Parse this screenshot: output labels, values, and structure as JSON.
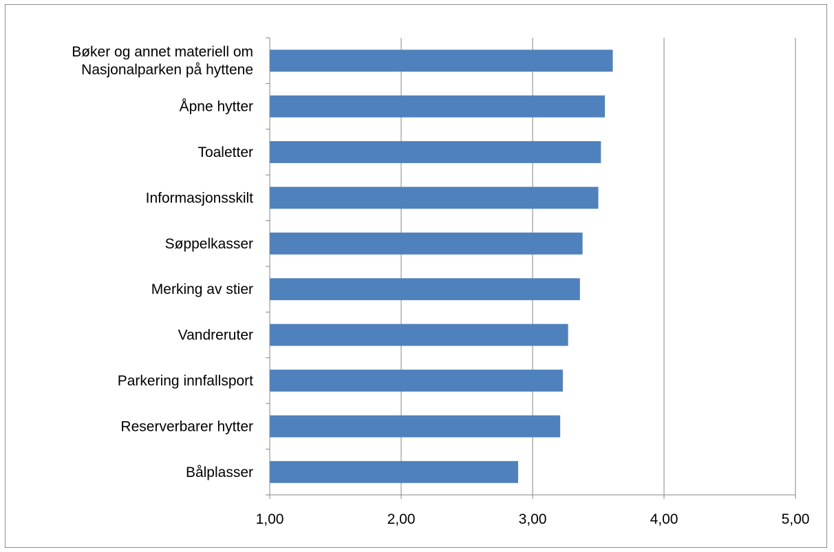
{
  "chart_data": {
    "type": "bar",
    "orientation": "horizontal",
    "title": "",
    "xlabel": "",
    "ylabel": "",
    "categories": [
      [
        "Bøker og annet materiell om",
        "Nasjonalparken på  hyttene"
      ],
      [
        "Åpne hytter"
      ],
      [
        "Toaletter"
      ],
      [
        "Informasjonsskilt"
      ],
      [
        "Søppelkasser"
      ],
      [
        "Merking av stier"
      ],
      [
        "Vandreruter"
      ],
      [
        "Parkering innfallsport"
      ],
      [
        "Reserverbarer hytter"
      ],
      [
        "Bålplasser"
      ]
    ],
    "values": [
      3.61,
      3.55,
      3.52,
      3.5,
      3.38,
      3.36,
      3.27,
      3.23,
      3.21,
      2.89
    ],
    "xlim": [
      1,
      5
    ],
    "xticks": [
      1,
      2,
      3,
      4,
      5
    ],
    "xtick_labels": [
      "1,00",
      "2,00",
      "3,00",
      "4,00",
      "5,00"
    ],
    "grid": "vertical",
    "legend": "none",
    "bar_color": "#4f81bd"
  }
}
